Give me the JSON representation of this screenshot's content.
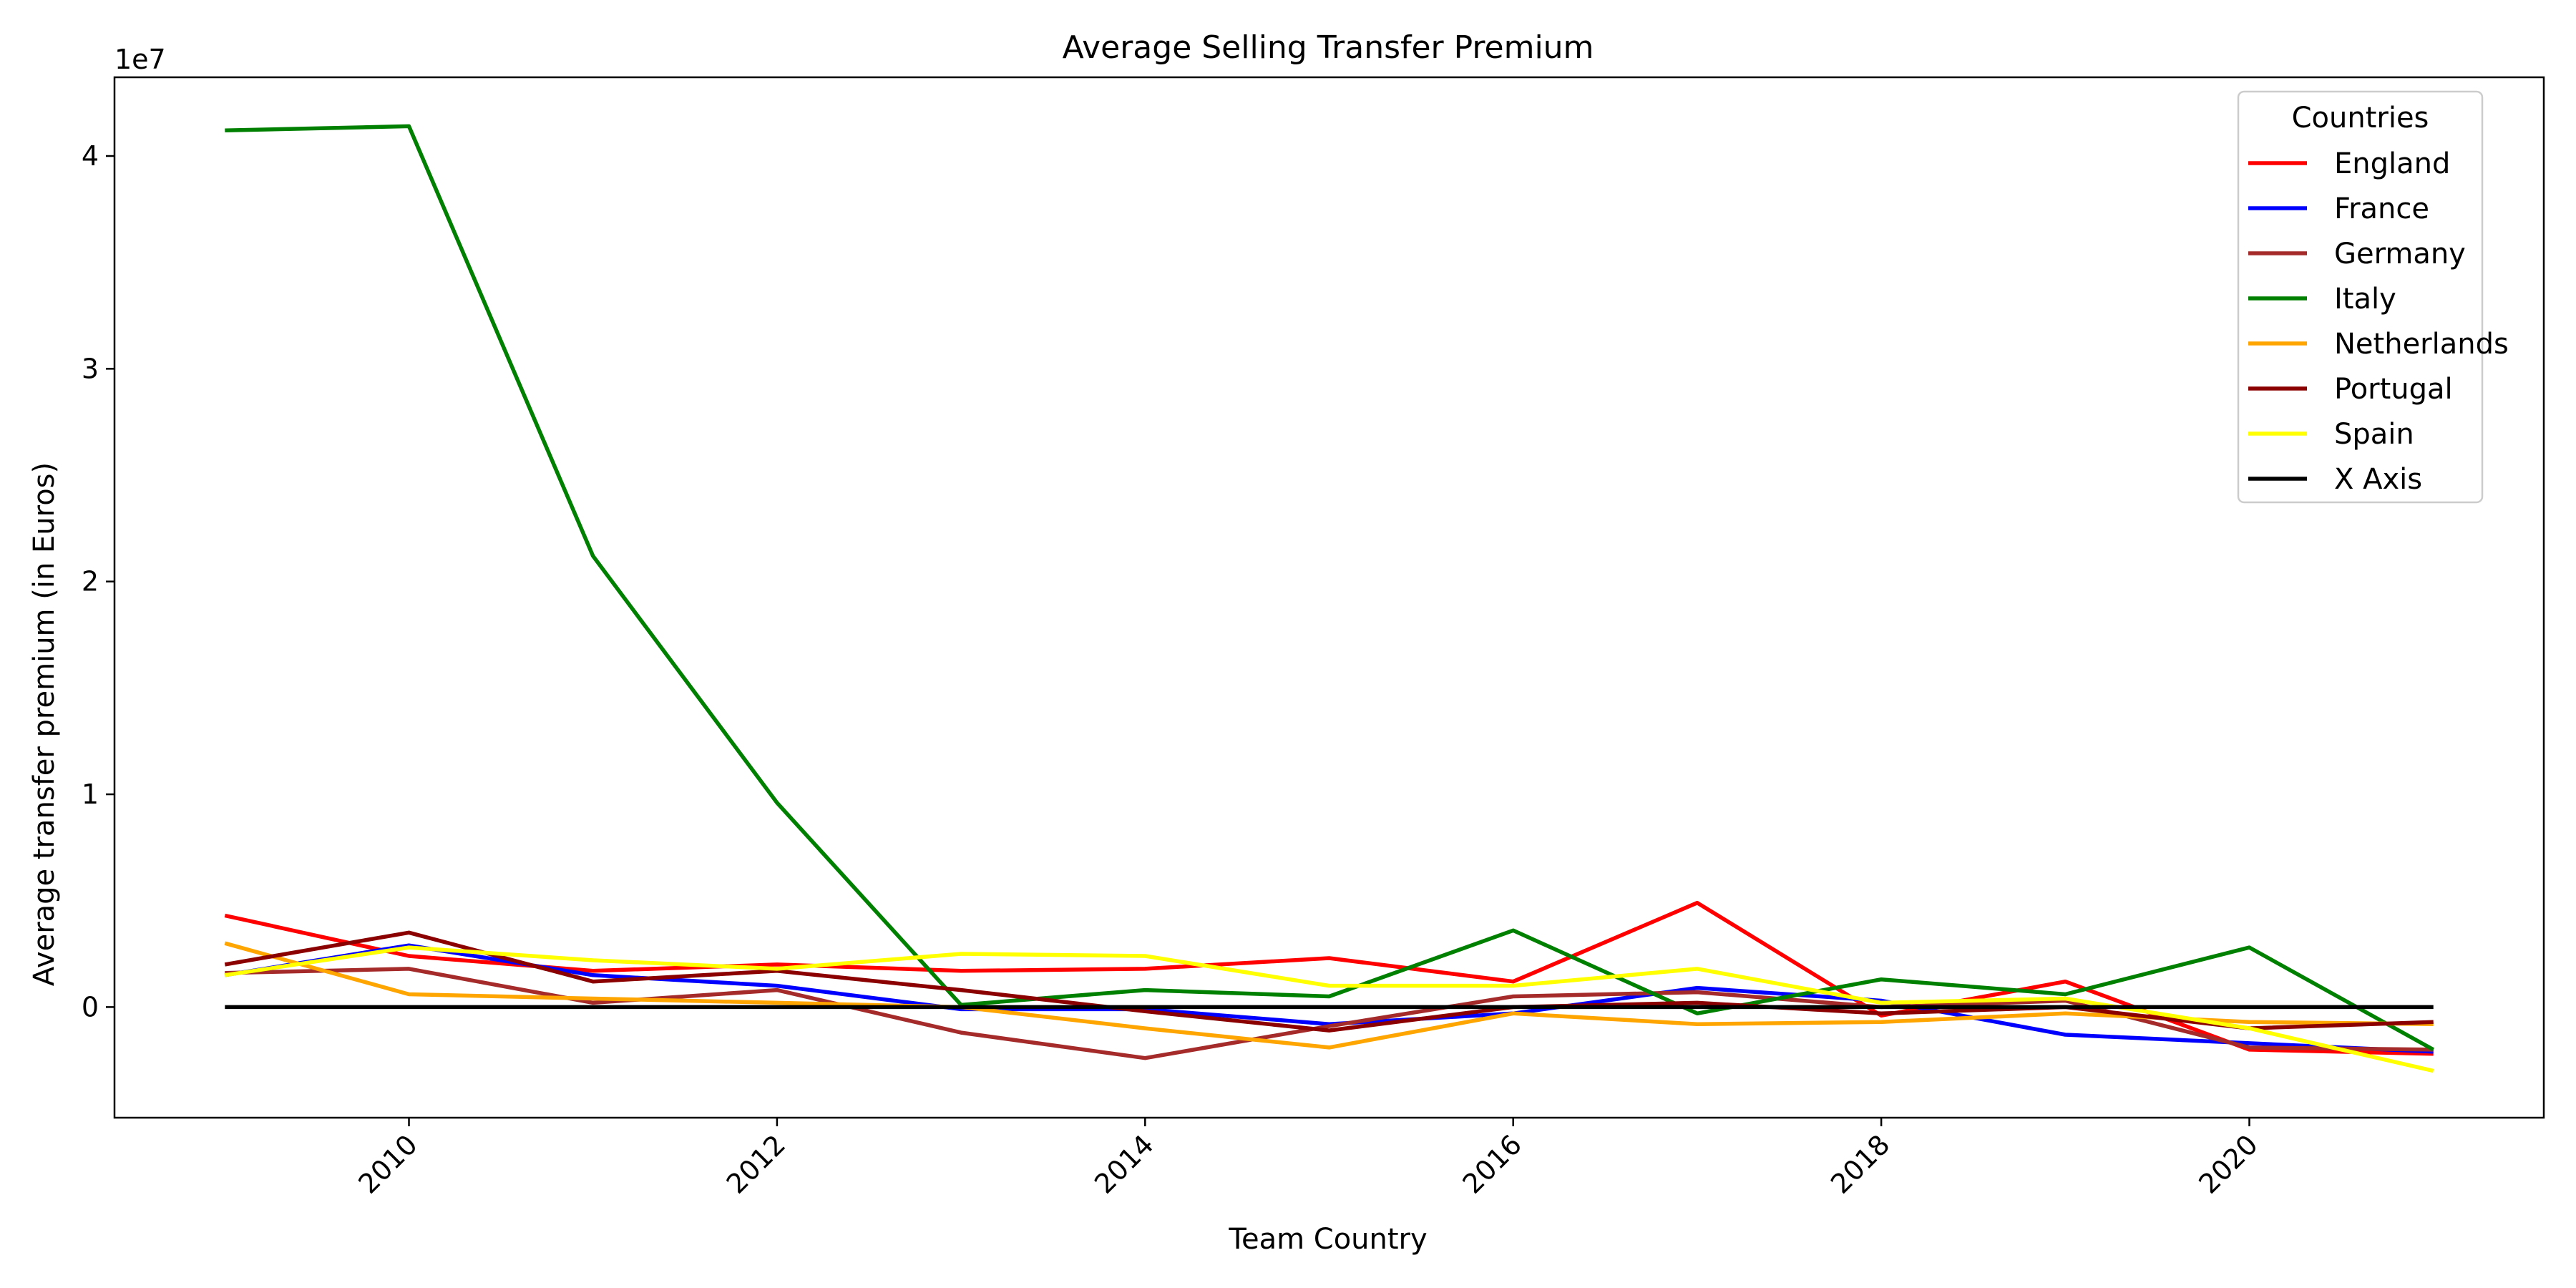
{
  "chart_data": {
    "type": "line",
    "title": "Average Selling Transfer Premium",
    "xlabel": "Team Country",
    "ylabel": "Average transfer premium (in Euros)",
    "y_scale_label": "1e7",
    "x_ticks": [
      2010,
      2012,
      2014,
      2016,
      2018,
      2020
    ],
    "y_ticks": [
      0,
      1,
      2,
      3,
      4
    ],
    "xlim": [
      2008.4,
      2021.6
    ],
    "ylim": [
      -5200000,
      43700000
    ],
    "x": [
      2009,
      2010,
      2011,
      2012,
      2013,
      2014,
      2015,
      2016,
      2017,
      2018,
      2019,
      2020,
      2021
    ],
    "grid": false,
    "legend": {
      "title": "Countries",
      "position": "top-right"
    },
    "series": [
      {
        "name": "England",
        "color": "#ff0000",
        "values": [
          4300000,
          2400000,
          1700000,
          2000000,
          1700000,
          1800000,
          2300000,
          1200000,
          4900000,
          -400000,
          1200000,
          -2000000,
          -2200000
        ]
      },
      {
        "name": "France",
        "color": "#0000ff",
        "values": [
          1500000,
          2900000,
          1500000,
          1000000,
          -100000,
          -100000,
          -800000,
          -300000,
          900000,
          300000,
          -1300000,
          -1700000,
          -2100000
        ]
      },
      {
        "name": "Germany",
        "color": "#a52a2a",
        "values": [
          1600000,
          1800000,
          200000,
          800000,
          -1200000,
          -2400000,
          -900000,
          500000,
          700000,
          0,
          300000,
          -1900000,
          -2000000
        ]
      },
      {
        "name": "Italy",
        "color": "#008000",
        "values": [
          41200000,
          41400000,
          21200000,
          9600000,
          100000,
          800000,
          500000,
          3600000,
          -300000,
          1300000,
          600000,
          2800000,
          -2000000
        ]
      },
      {
        "name": "Netherlands",
        "color": "#ffa500",
        "values": [
          3000000,
          600000,
          400000,
          200000,
          0,
          -1000000,
          -1900000,
          -300000,
          -800000,
          -700000,
          -300000,
          -700000,
          -800000
        ]
      },
      {
        "name": "Portugal",
        "color": "#8b0000",
        "values": [
          2000000,
          3500000,
          1200000,
          1700000,
          800000,
          -200000,
          -1100000,
          0,
          200000,
          -300000,
          0,
          -1000000,
          -700000
        ]
      },
      {
        "name": "Spain",
        "color": "#ffff00",
        "values": [
          1500000,
          2800000,
          2200000,
          1800000,
          2500000,
          2400000,
          1000000,
          1000000,
          1800000,
          200000,
          400000,
          -1000000,
          -3000000
        ]
      },
      {
        "name": "X Axis",
        "color": "#000000",
        "values": [
          0,
          0,
          0,
          0,
          0,
          0,
          0,
          0,
          0,
          0,
          0,
          0,
          0
        ]
      }
    ]
  }
}
